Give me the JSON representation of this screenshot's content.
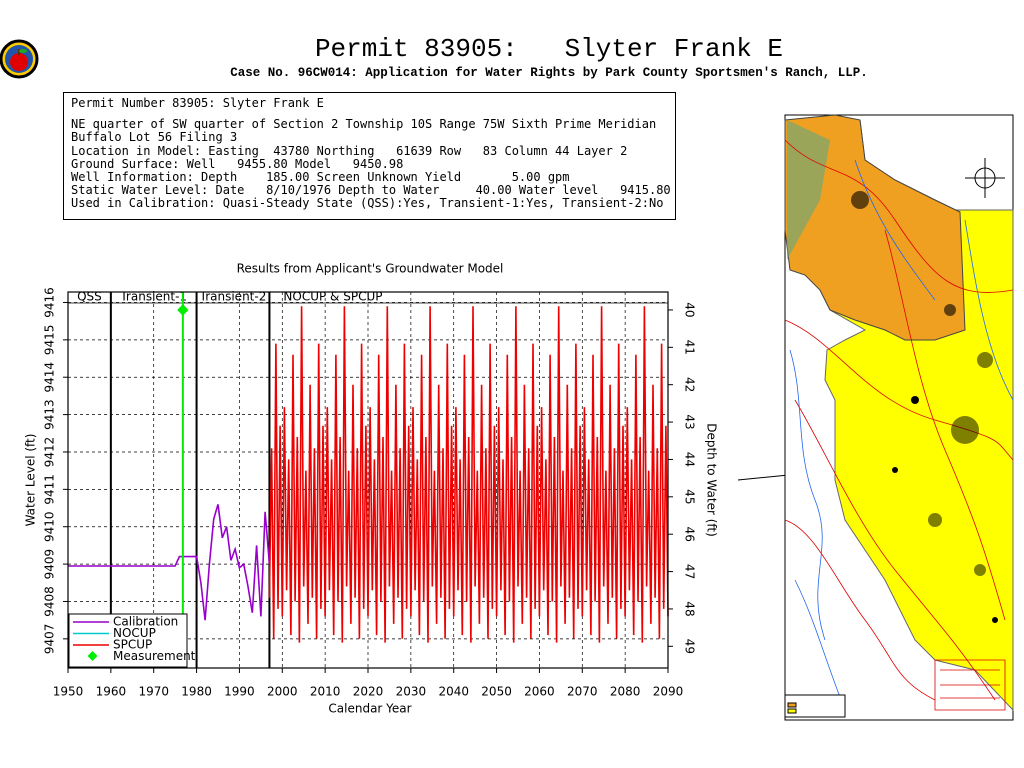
{
  "header": {
    "title": "Permit 83905:   Slyter Frank E",
    "subtitle": "Case No. 96CW014: Application for Water Rights by Park County Sportsmen's Ranch, LLP."
  },
  "info": {
    "lines": [
      "Permit Number 83905: Slyter Frank E",
      "NE quarter of SW quarter of Section 2 Township 10S Range 75W Sixth Prime Meridian",
      "Buffalo Lot 56 Filing 3",
      "Location in Model: Easting  43780 Northing   61639 Row   83 Column 44 Layer 2",
      "Ground Surface: Well   9455.80 Model   9450.98",
      "Well Information: Depth    185.00 Screen Unknown Yield       5.00 gpm",
      "Static Water Level: Date   8/10/1976 Depth to Water     40.00 Water level   9415.80",
      "Used in Calibration: Quasi-Steady State (QSS):Yes, Transient-1:Yes, Transient-2:No"
    ]
  },
  "chart_data": {
    "type": "line",
    "title": "Results from Applicant's Groundwater Model",
    "xlabel": "Calendar Year",
    "ylabel": "Water Level (ft)",
    "y2label": "Depth to Water (ft)",
    "xlim": [
      1950,
      2090
    ],
    "xticks": [
      1950,
      1960,
      1970,
      1980,
      1990,
      2000,
      2010,
      2020,
      2030,
      2040,
      2050,
      2060,
      2070,
      2080,
      2090
    ],
    "ylim": [
      9406.22,
      9416.28
    ],
    "yticks": [
      9407,
      9408,
      9409,
      9410,
      9411,
      9412,
      9413,
      9414,
      9415,
      9416
    ],
    "y2lim": [
      49.58,
      39.52
    ],
    "y2ticks": [
      40,
      41,
      42,
      43,
      44,
      45,
      46,
      47,
      48,
      49
    ],
    "grid": true,
    "legend": "lower left",
    "phases": [
      {
        "label": "QSS",
        "start": 1950,
        "end": 1960
      },
      {
        "label": "Transient-1",
        "start": 1960,
        "end": 1980
      },
      {
        "label": "Transient-2",
        "start": 1980,
        "end": 1997
      },
      {
        "label": "NOCUP  & SPCUP",
        "start": 1997,
        "end": 2090
      }
    ],
    "series": [
      {
        "name": "Calibration",
        "color": "#9900cc",
        "x": [
          1950,
          1975,
          1976,
          1980,
          1981,
          1982,
          1983,
          1984,
          1985,
          1986,
          1987,
          1988,
          1989,
          1990,
          1991,
          1992,
          1993,
          1994,
          1995,
          1996,
          1997
        ],
        "values": [
          9408.95,
          9408.95,
          9409.2,
          9409.2,
          9408.5,
          9407.5,
          9409,
          9410.2,
          9410.6,
          9409.7,
          9410,
          9409.1,
          9409.4,
          9408.9,
          9409,
          9408.4,
          9407.7,
          9409.5,
          9407.6,
          9410.4,
          9409
        ]
      },
      {
        "name": "NOCUP",
        "color": "#00cccc",
        "x": [],
        "values": []
      },
      {
        "name": "SPCUP",
        "color": "#ee0000",
        "x": [
          1997,
          1997.5,
          1998,
          1998.5,
          1999,
          1999.5,
          2000,
          2000.5,
          2001,
          2001.5,
          2002,
          2002.5,
          2003,
          2003.5,
          2004,
          2004.5,
          2005,
          2005.5,
          2006,
          2006.5,
          2007,
          2007.5,
          2008,
          2008.5,
          2009,
          2009.5,
          2010,
          2010.5,
          2011,
          2011.5,
          2012,
          2012.5,
          2013,
          2013.5,
          2014,
          2014.5,
          2015,
          2015.5,
          2016,
          2016.5,
          2017,
          2017.5,
          2018,
          2018.5,
          2019,
          2019.5,
          2020,
          2020.5,
          2021,
          2021.5,
          2022,
          2022.5,
          2023,
          2023.5,
          2024,
          2024.5,
          2025,
          2025.5,
          2026,
          2026.5,
          2027,
          2027.5,
          2028,
          2028.5,
          2029,
          2029.5,
          2030,
          2030.5,
          2031,
          2031.5,
          2032,
          2032.5,
          2033,
          2033.5,
          2034,
          2034.5,
          2035,
          2035.5,
          2036,
          2036.5,
          2037,
          2037.5,
          2038,
          2038.5,
          2039,
          2039.5,
          2040,
          2040.5,
          2041,
          2041.5,
          2042,
          2042.5,
          2043,
          2043.5,
          2044,
          2044.5,
          2045,
          2045.5,
          2046,
          2046.5,
          2047,
          2047.5,
          2048,
          2048.5,
          2049,
          2049.5,
          2050,
          2050.5,
          2051,
          2051.5,
          2052,
          2052.5,
          2053,
          2053.5,
          2054,
          2054.5,
          2055,
          2055.5,
          2056,
          2056.5,
          2057,
          2057.5,
          2058,
          2058.5,
          2059,
          2059.5,
          2060,
          2060.5,
          2061,
          2061.5,
          2062,
          2062.5,
          2063,
          2063.5,
          2064,
          2064.5,
          2065,
          2065.5,
          2066,
          2066.5,
          2067,
          2067.5,
          2068,
          2068.5,
          2069,
          2069.5,
          2070,
          2070.5,
          2071,
          2071.5,
          2072,
          2072.5,
          2073,
          2073.5,
          2074,
          2074.5,
          2075,
          2075.5,
          2076,
          2076.5,
          2077,
          2077.5,
          2078,
          2078.5,
          2079,
          2079.5,
          2080,
          2080.5,
          2081,
          2081.5,
          2082,
          2082.5,
          2083,
          2083.5,
          2084,
          2084.5,
          2085,
          2085.5,
          2086,
          2086.5,
          2087,
          2087.5,
          2088,
          2088.5,
          2089,
          2089.5,
          2090
        ],
        "values": [
          9408.1,
          9412.1,
          9407.0,
          9414.9,
          9407.8,
          9412.7,
          9407.6,
          9413.2,
          9408.3,
          9411.8,
          9407.1,
          9414.6,
          9408.0,
          9412.4,
          9406.9,
          9415.9,
          9408.4,
          9411.5,
          9407.4,
          9413.8,
          9408.1,
          9412.1,
          9407.0,
          9414.9,
          9407.8,
          9412.7,
          9407.6,
          9413.2,
          9408.3,
          9411.8,
          9407.1,
          9414.6,
          9408.0,
          9412.4,
          9406.9,
          9415.9,
          9408.4,
          9411.5,
          9407.4,
          9413.8,
          9408.1,
          9412.1,
          9407.0,
          9414.9,
          9407.8,
          9412.7,
          9407.6,
          9413.2,
          9408.3,
          9411.8,
          9407.1,
          9414.6,
          9408.0,
          9412.4,
          9406.9,
          9415.9,
          9408.4,
          9411.5,
          9407.4,
          9413.8,
          9408.1,
          9412.1,
          9407.0,
          9414.9,
          9407.8,
          9412.7,
          9407.6,
          9413.2,
          9408.3,
          9411.8,
          9407.1,
          9414.6,
          9408.0,
          9412.4,
          9406.9,
          9415.9,
          9408.4,
          9411.5,
          9407.4,
          9413.8,
          9408.1,
          9412.1,
          9407.0,
          9414.9,
          9407.8,
          9412.7,
          9407.6,
          9413.2,
          9408.3,
          9411.8,
          9407.1,
          9414.6,
          9408.0,
          9412.4,
          9406.9,
          9415.9,
          9408.4,
          9411.5,
          9407.4,
          9413.8,
          9408.1,
          9412.1,
          9407.0,
          9414.9,
          9407.8,
          9412.7,
          9407.6,
          9413.2,
          9408.3,
          9411.8,
          9407.1,
          9414.6,
          9408.0,
          9412.4,
          9406.9,
          9415.9,
          9408.4,
          9411.5,
          9407.4,
          9413.8,
          9408.1,
          9412.1,
          9407.0,
          9414.9,
          9407.8,
          9412.7,
          9407.6,
          9413.2,
          9408.3,
          9411.8,
          9407.1,
          9414.6,
          9408.0,
          9412.4,
          9406.9,
          9415.9,
          9408.4,
          9411.5,
          9407.4,
          9413.8,
          9408.1,
          9412.1,
          9407.0,
          9414.9,
          9407.8,
          9412.7,
          9407.6,
          9413.2,
          9408.3,
          9411.8,
          9407.1,
          9414.6,
          9408.0,
          9412.4,
          9406.9,
          9415.9,
          9408.4,
          9411.5,
          9407.4,
          9413.8,
          9408.1,
          9412.1,
          9407.0,
          9414.9,
          9407.8,
          9412.7,
          9407.6,
          9413.2,
          9408.3,
          9411.8,
          9407.1,
          9414.6,
          9408.0,
          9412.4,
          9406.9,
          9415.9,
          9408.4,
          9411.5,
          9407.4,
          9413.8,
          9408.1,
          9412.1,
          9407.0,
          9414.9,
          9407.8,
          9412.7,
          9407.6
        ]
      },
      {
        "name": "Measurement",
        "color": "#00ee00",
        "marker": true,
        "x": [
          1976.8
        ],
        "values": [
          9415.8
        ]
      }
    ]
  }
}
